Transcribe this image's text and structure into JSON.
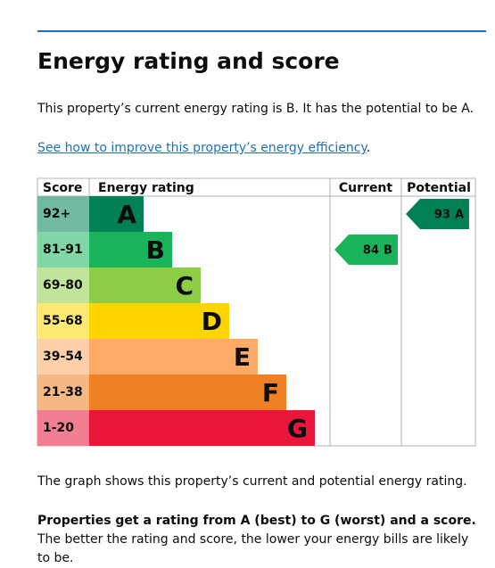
{
  "header": {
    "title": "Energy rating and score"
  },
  "intro": "This property’s current energy rating is B. It has the potential to be A.",
  "link": "See how to improve this property’s energy efficiency",
  "link_suffix": ".",
  "graph": {
    "headers": [
      "Score",
      "Energy rating",
      "Current",
      "Potential"
    ],
    "bands": [
      {
        "range": "92+",
        "rating": "A",
        "color": "#008054"
      },
      {
        "range": "81-91",
        "rating": "B",
        "color": "#19b459"
      },
      {
        "range": "69-80",
        "rating": "C",
        "color": "#8dce46"
      },
      {
        "range": "55-68",
        "rating": "D",
        "color": "#ffd500"
      },
      {
        "range": "39-54",
        "rating": "E",
        "color": "#fcaa65"
      },
      {
        "range": "21-38",
        "rating": "F",
        "color": "#ef8023"
      },
      {
        "range": "1-20",
        "rating": "G",
        "color": "#e9153b"
      }
    ],
    "current": {
      "score": 84,
      "rating": "B"
    },
    "potential": {
      "score": 93,
      "rating": "A"
    }
  },
  "caption": "The graph shows this property’s current and potential energy rating.",
  "note": {
    "bold": "Properties get a rating from A (best) to G (worst) and a score.",
    "text": "The better the rating and score, the lower your energy bills are likely to be."
  }
}
